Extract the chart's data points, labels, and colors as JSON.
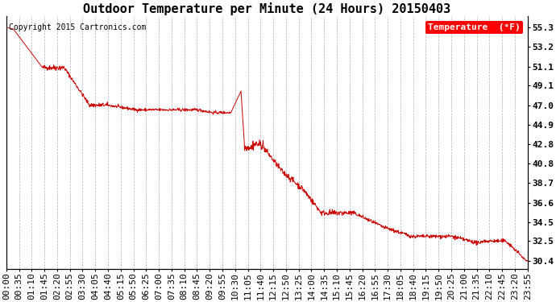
{
  "title": "Outdoor Temperature per Minute (24 Hours) 20150403",
  "copyright_text": "Copyright 2015 Cartronics.com",
  "legend_label": "Temperature  (°F)",
  "line_color": "#cc0000",
  "background_color": "#ffffff",
  "grid_color": "#999999",
  "ylim_min": 29.5,
  "ylim_max": 56.5,
  "yticks": [
    30.4,
    32.5,
    34.5,
    36.6,
    38.7,
    40.8,
    42.8,
    44.9,
    47.0,
    49.1,
    51.1,
    53.2,
    55.3
  ],
  "xtick_labels": [
    "00:00",
    "00:35",
    "01:10",
    "01:45",
    "02:20",
    "02:55",
    "03:30",
    "04:05",
    "04:40",
    "05:15",
    "05:50",
    "06:25",
    "07:00",
    "07:35",
    "08:10",
    "08:45",
    "09:20",
    "09:55",
    "10:30",
    "11:05",
    "11:40",
    "12:15",
    "12:50",
    "13:25",
    "14:00",
    "14:35",
    "15:10",
    "15:45",
    "16:20",
    "16:55",
    "17:30",
    "18:05",
    "18:40",
    "19:15",
    "19:50",
    "20:25",
    "21:00",
    "21:35",
    "22:10",
    "22:45",
    "23:20",
    "23:55"
  ],
  "title_fontsize": 11,
  "tick_fontsize": 8,
  "copyright_fontsize": 7,
  "legend_fontsize": 8,
  "figwidth": 6.9,
  "figheight": 3.75,
  "dpi": 100
}
